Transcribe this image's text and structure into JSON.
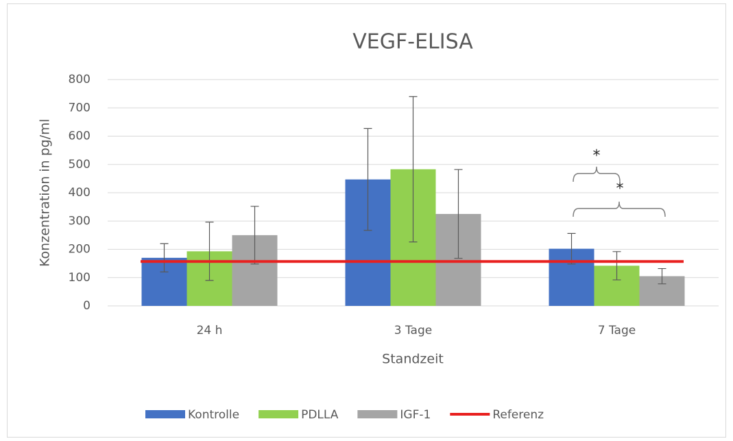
{
  "chart_data": {
    "type": "bar",
    "title": "VEGF-ELISA",
    "x_label": "Standzeit",
    "y_label": "Konzentration in pg/ml",
    "categories": [
      "24 h",
      "3 Tage",
      "7 Tage"
    ],
    "series": [
      {
        "name": "Kontrolle",
        "color": "#4472c4",
        "values": [
          170,
          447,
          202
        ],
        "errors": [
          50,
          180,
          54
        ]
      },
      {
        "name": "PDLLA",
        "color": "#92d050",
        "values": [
          193,
          483,
          142
        ],
        "errors": [
          103,
          257,
          50
        ]
      },
      {
        "name": "IGF-1",
        "color": "#a5a5a5",
        "values": [
          250,
          325,
          105
        ],
        "errors": [
          102,
          157,
          27
        ]
      }
    ],
    "reference": {
      "name": "Referenz",
      "color": "#e8201f",
      "value": 157
    },
    "annotations": [
      {
        "text": "*"
      },
      {
        "text": "*"
      }
    ],
    "ylim": [
      0,
      800
    ],
    "yticks": [
      0,
      100,
      200,
      300,
      400,
      500,
      600,
      700,
      800
    ],
    "grid": true,
    "legend": "bottom"
  }
}
